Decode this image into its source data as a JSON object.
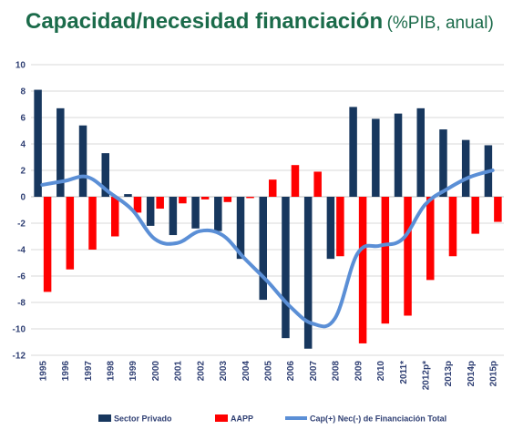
{
  "title": {
    "main": "Capacidad/necesidad financiación",
    "sub": "(%PIB, anual)"
  },
  "chart_data": {
    "type": "bar",
    "categories": [
      "1995",
      "1996",
      "1997",
      "1998",
      "1999",
      "2000",
      "2001",
      "2002",
      "2003",
      "2004",
      "2005",
      "2006",
      "2007",
      "2008",
      "2009",
      "2010",
      "2011*",
      "2012p*",
      "2013p",
      "2014p",
      "2015p"
    ],
    "ylim": [
      -12,
      10
    ],
    "yticks": [
      10,
      8,
      6,
      4,
      2,
      0,
      -2,
      -4,
      -6,
      -8,
      -10,
      -12
    ],
    "grid": true,
    "legend_position": "bottom",
    "series": [
      {
        "name": "Sector Privado",
        "kind": "bar",
        "color": "#17375e",
        "values": [
          8.1,
          6.7,
          5.4,
          3.3,
          0.2,
          -2.2,
          -2.9,
          -2.4,
          -2.6,
          -4.7,
          -7.8,
          -10.7,
          -11.5,
          -4.7,
          6.8,
          5.9,
          6.3,
          6.7,
          5.1,
          4.3,
          3.9
        ]
      },
      {
        "name": "AAPP",
        "kind": "bar",
        "color": "#ff0000",
        "values": [
          -7.2,
          -5.5,
          -4.0,
          -3.0,
          -1.2,
          -0.9,
          -0.5,
          -0.2,
          -0.4,
          -0.1,
          1.3,
          2.4,
          1.9,
          -4.5,
          -11.1,
          -9.6,
          -9.0,
          -6.3,
          -4.5,
          -2.8,
          -1.9
        ]
      },
      {
        "name": "Cap(+) Nec(-) de Financiación Total",
        "kind": "line",
        "color": "#5b8fd6",
        "values": [
          0.9,
          1.2,
          1.5,
          0.3,
          -1.0,
          -3.2,
          -3.5,
          -2.6,
          -2.9,
          -4.7,
          -6.4,
          -8.3,
          -9.6,
          -9.2,
          -4.3,
          -3.7,
          -3.2,
          -0.6,
          0.6,
          1.5,
          2.0
        ]
      }
    ]
  }
}
